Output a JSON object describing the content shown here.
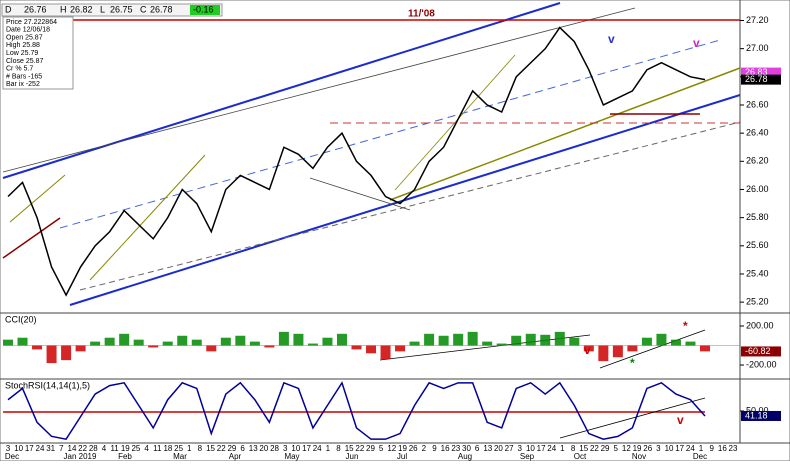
{
  "header": {
    "symbol": "D",
    "open_label": "26.76",
    "high_label": "H",
    "high": "26.82",
    "low_label": "L",
    "low": "26.75",
    "close_label": "C",
    "close": "26.78",
    "change": "-0.16"
  },
  "info": [
    "Price 27.222864",
    "Date 12/06/18",
    "Open 25.87",
    "High 25.88",
    "Low 25.79",
    "Close 25.87",
    "Cr % 5.7",
    "# Bars -165",
    "Bar ix -252"
  ],
  "x_axis": {
    "days": [
      "3",
      "10",
      "17",
      "24",
      "31",
      "7",
      "14",
      "22",
      "28",
      "4",
      "11",
      "19",
      "25",
      "4",
      "11",
      "18",
      "25",
      "1",
      "8",
      "15",
      "22",
      "29",
      "6",
      "13",
      "20",
      "28",
      "3",
      "10",
      "17",
      "24",
      "1",
      "8",
      "15",
      "22",
      "29",
      "5",
      "12",
      "19",
      "26",
      "2",
      "9",
      "16",
      "23",
      "30",
      "6",
      "13",
      "20",
      "27",
      "3",
      "10",
      "17",
      "24",
      "1",
      "8",
      "15",
      "22",
      "29",
      "5",
      "12",
      "19",
      "26",
      "3",
      "10",
      "17",
      "24",
      "1",
      "9",
      "16",
      "23"
    ],
    "months": [
      "Dec",
      "Jan 2019",
      "Feb",
      "Mar",
      "Apr",
      "May",
      "Jun",
      "Jul",
      "Aug",
      "Sep",
      "Oct",
      "Nov",
      "Dec"
    ]
  },
  "chart_data": [
    {
      "type": "line",
      "title": "11/'08",
      "series": [
        {
          "name": "Price",
          "color": "#000000",
          "values": [
            25.95,
            26.05,
            25.8,
            25.45,
            25.25,
            25.45,
            25.6,
            25.7,
            25.85,
            25.75,
            25.65,
            25.8,
            26.0,
            25.9,
            25.7,
            26.0,
            26.1,
            26.05,
            26.0,
            26.3,
            26.25,
            26.15,
            26.3,
            26.4,
            26.2,
            26.1,
            25.95,
            25.9,
            26.0,
            26.2,
            26.3,
            26.5,
            26.7,
            26.6,
            26.55,
            26.8,
            26.9,
            27.0,
            27.15,
            27.05,
            26.85,
            26.6,
            26.65,
            26.7,
            26.85,
            26.9,
            26.85,
            26.8,
            26.78
          ]
        }
      ],
      "ylim": [
        25.13,
        27.31
      ],
      "yticks": [
        {
          "value": 25.2,
          "label": "25.20"
        },
        {
          "value": 25.4,
          "label": "25.40"
        },
        {
          "value": 25.6,
          "label": "25.60"
        },
        {
          "value": 25.8,
          "label": "25.80"
        },
        {
          "value": 26.0,
          "label": "26.00"
        },
        {
          "value": 26.2,
          "label": "26.20"
        },
        {
          "value": 26.4,
          "label": "26.40"
        },
        {
          "value": 26.6,
          "label": "26.60"
        },
        {
          "value": 26.8,
          "label": "26.80"
        },
        {
          "value": 27.0,
          "label": "27.00"
        },
        {
          "value": 27.2,
          "label": "27.20"
        }
      ],
      "last_labels": [
        {
          "value": 26.83,
          "label": "26.83",
          "color": "#e040e0"
        },
        {
          "value": 26.78,
          "label": "26.78",
          "color": "#000000"
        }
      ],
      "annotations": [
        {
          "label": "v",
          "color": "#2233cc"
        },
        {
          "label": "v",
          "color": "#cc22cc"
        }
      ]
    },
    {
      "type": "bar",
      "title": "CCI(20)",
      "series": [
        {
          "name": "CCI",
          "color": "#008800",
          "negative_color": "#cc0000",
          "values": [
            60,
            80,
            -40,
            -180,
            -150,
            -60,
            40,
            80,
            120,
            60,
            -20,
            40,
            100,
            60,
            -60,
            80,
            100,
            40,
            -20,
            140,
            120,
            20,
            80,
            120,
            -40,
            -80,
            -140,
            -60,
            40,
            120,
            100,
            120,
            140,
            40,
            20,
            100,
            120,
            110,
            140,
            80,
            -60,
            -160,
            -120,
            -60,
            80,
            120,
            60,
            40,
            -60
          ]
        }
      ],
      "ylim": [
        -333,
        323
      ],
      "yticks": [
        {
          "value": 200,
          "label": "200.00"
        },
        {
          "value": -200,
          "label": "-200.00"
        }
      ],
      "last_labels": [
        {
          "value": -60.82,
          "label": "-60.82",
          "color": "#8b0000"
        }
      ],
      "annotations": [
        {
          "label": "v",
          "color": "#cc0000"
        },
        {
          "label": "*",
          "color": "#cc0000"
        },
        {
          "label": "*",
          "color": "#008800"
        }
      ]
    },
    {
      "type": "line",
      "title": "StochRSI(14,14(1),5)",
      "series": [
        {
          "name": "StochRSI",
          "color": "#000099",
          "values": [
            70,
            90,
            30,
            5,
            0,
            40,
            80,
            95,
            100,
            60,
            20,
            70,
            100,
            90,
            10,
            80,
            100,
            70,
            30,
            100,
            90,
            20,
            60,
            100,
            20,
            0,
            0,
            10,
            60,
            100,
            90,
            100,
            100,
            30,
            20,
            90,
            100,
            80,
            100,
            60,
            10,
            0,
            5,
            20,
            90,
            100,
            80,
            70,
            41.18
          ]
        }
      ],
      "ylim": [
        -5,
        105
      ],
      "yticks": [
        {
          "value": 50,
          "label": "50.00"
        }
      ],
      "last_labels": [
        {
          "value": 41.18,
          "label": "41.18",
          "color": "#000066"
        }
      ],
      "annotations": [
        {
          "label": "v",
          "color": "#cc0000"
        }
      ]
    }
  ]
}
